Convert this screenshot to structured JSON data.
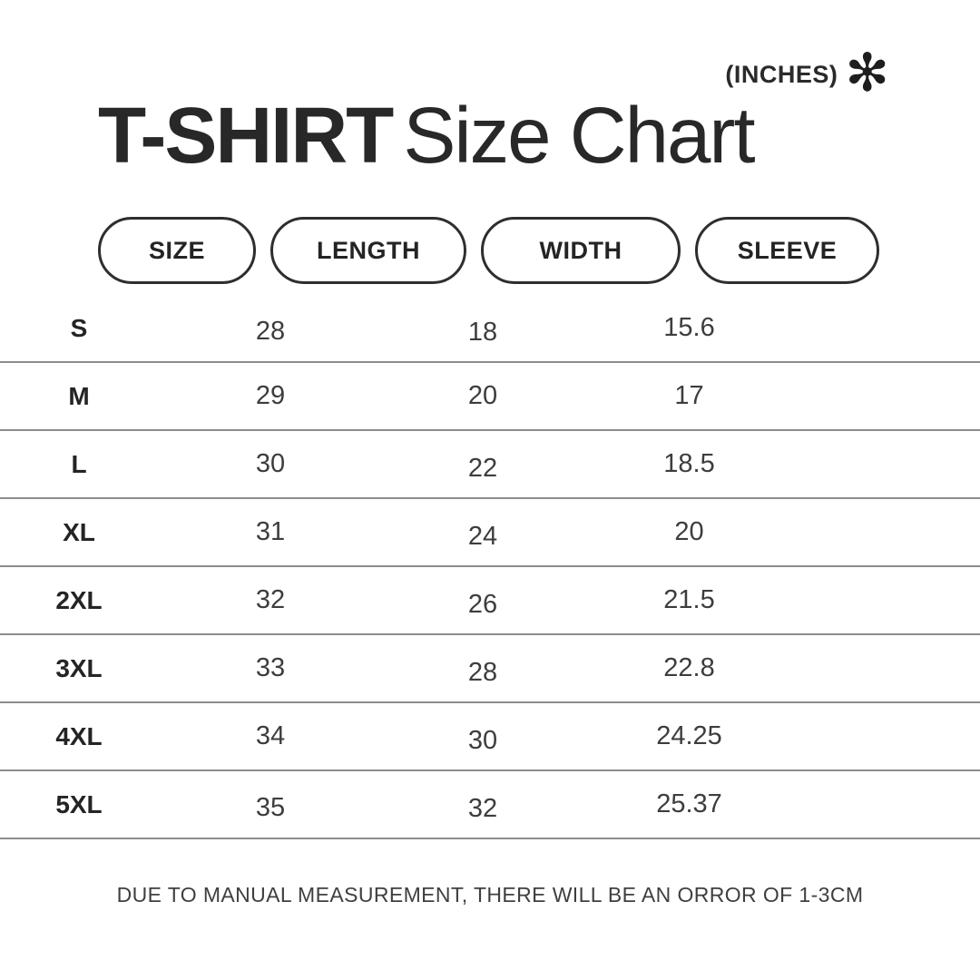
{
  "header": {
    "units_label": "(INCHES)",
    "asterisk": "✻",
    "title_bold": "T-SHIRT",
    "title_regular": "Size Chart"
  },
  "table": {
    "columns": [
      "SIZE",
      "LENGTH",
      "WIDTH",
      "SLEEVE"
    ],
    "rows": [
      {
        "size": "S",
        "length": "28",
        "width": "18",
        "sleeve": "15.6"
      },
      {
        "size": "M",
        "length": "29",
        "width": "20",
        "sleeve": "17"
      },
      {
        "size": "L",
        "length": "30",
        "width": "22",
        "sleeve": "18.5"
      },
      {
        "size": "XL",
        "length": "31",
        "width": "24",
        "sleeve": "20"
      },
      {
        "size": "2XL",
        "length": "32",
        "width": "26",
        "sleeve": "21.5"
      },
      {
        "size": "3XL",
        "length": "33",
        "width": "28",
        "sleeve": "22.8"
      },
      {
        "size": "4XL",
        "length": "34",
        "width": "30",
        "sleeve": "24.25"
      },
      {
        "size": "5XL",
        "length": "35",
        "width": "32",
        "sleeve": "25.37"
      }
    ]
  },
  "footer": {
    "note": "DUE TO MANUAL MEASUREMENT, THERE WILL BE AN ORROR OF 1-3CM"
  },
  "colors": {
    "background": "#ffffff",
    "text_primary": "#262626",
    "text_secondary": "#3d3d3d",
    "pill_border": "#2e2e2e",
    "divider": "#8c8c8c"
  },
  "chart_data": {
    "type": "table",
    "title": "T-SHIRT Size Chart",
    "units": "INCHES",
    "columns": [
      "SIZE",
      "LENGTH",
      "WIDTH",
      "SLEEVE"
    ],
    "categories": [
      "S",
      "M",
      "L",
      "XL",
      "2XL",
      "3XL",
      "4XL",
      "5XL"
    ],
    "series": [
      {
        "name": "LENGTH",
        "values": [
          28,
          29,
          30,
          31,
          32,
          33,
          34,
          35
        ]
      },
      {
        "name": "WIDTH",
        "values": [
          18,
          20,
          22,
          24,
          26,
          28,
          30,
          32
        ]
      },
      {
        "name": "SLEEVE",
        "values": [
          15.6,
          17,
          18.5,
          20,
          21.5,
          22.8,
          24.25,
          25.37
        ]
      }
    ],
    "note": "DUE TO MANUAL MEASUREMENT, THERE WILL BE AN ORROR OF 1-3CM"
  }
}
